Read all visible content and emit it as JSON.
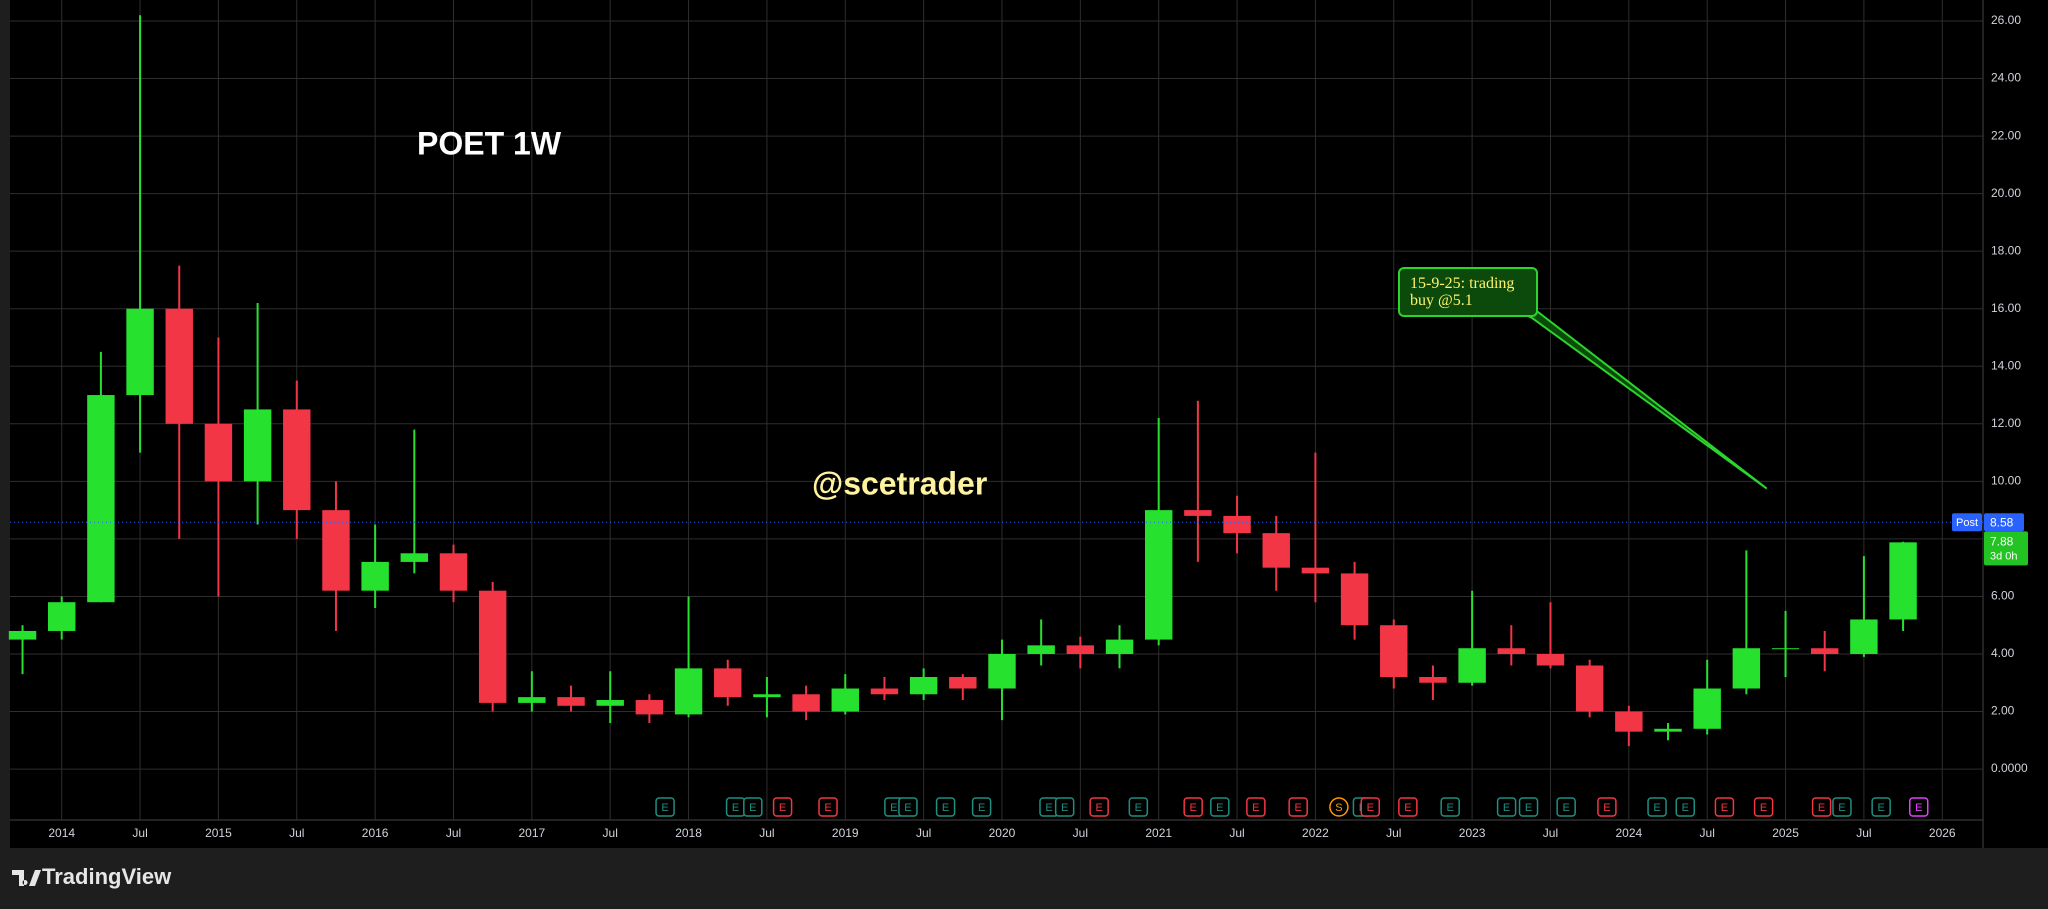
{
  "chart_data": {
    "type": "candlestick",
    "title": "POET 1W",
    "watermark": "@scetrader",
    "xlim": [
      2013.67,
      2026.26
    ],
    "ylim": [
      -1.77,
      26.73
    ],
    "grid": true,
    "up_color": "#27e12f",
    "down_color": "#f23645",
    "xticks": [
      2014,
      {
        "value": 2014.5,
        "label": "Jul"
      },
      2015,
      {
        "value": 2015.5,
        "label": "Jul"
      },
      2016,
      {
        "value": 2016.5,
        "label": "Jul"
      },
      2017,
      {
        "value": 2017.5,
        "label": "Jul"
      },
      2018,
      {
        "value": 2018.5,
        "label": "Jul"
      },
      2019,
      {
        "value": 2019.5,
        "label": "Jul"
      },
      2020,
      {
        "value": 2020.5,
        "label": "Jul"
      },
      2021,
      {
        "value": 2021.5,
        "label": "Jul"
      },
      2022,
      {
        "value": 2022.5,
        "label": "Jul"
      },
      2023,
      {
        "value": 2023.5,
        "label": "Jul"
      },
      2024,
      {
        "value": 2024.5,
        "label": "Jul"
      },
      2025,
      {
        "value": 2025.5,
        "label": "Jul"
      },
      2026
    ],
    "yticks": [
      {
        "value": 0,
        "label": "0.0000"
      },
      {
        "value": 2,
        "label": "2.00"
      },
      {
        "value": 4,
        "label": "4.00"
      },
      {
        "value": 6,
        "label": "6.00"
      },
      {
        "value": 8,
        "label": "8.00"
      },
      {
        "value": 10,
        "label": "10.00"
      },
      {
        "value": 12,
        "label": "12.00"
      },
      {
        "value": 14,
        "label": "14.00"
      },
      {
        "value": 16,
        "label": "16.00"
      },
      {
        "value": 18,
        "label": "18.00"
      },
      {
        "value": 20,
        "label": "20.00"
      },
      {
        "value": 22,
        "label": "22.00"
      },
      {
        "value": 24,
        "label": "24.00"
      },
      {
        "value": 26,
        "label": "26.00"
      }
    ],
    "x": [
      2013.75,
      2014.0,
      2014.25,
      2014.5,
      2014.75,
      2015.0,
      2015.25,
      2015.5,
      2015.75,
      2016.0,
      2016.25,
      2016.5,
      2016.75,
      2017.0,
      2017.25,
      2017.5,
      2017.75,
      2018.0,
      2018.25,
      2018.5,
      2018.75,
      2019.0,
      2019.25,
      2019.5,
      2019.75,
      2020.0,
      2020.25,
      2020.5,
      2020.75,
      2021.0,
      2021.25,
      2021.5,
      2021.75,
      2022.0,
      2022.25,
      2022.5,
      2022.75,
      2023.0,
      2023.25,
      2023.5,
      2023.75,
      2024.0,
      2024.25,
      2024.5,
      2024.75,
      2025.0,
      2025.25,
      2025.5,
      2025.75
    ],
    "open": [
      4.5,
      4.8,
      5.8,
      13,
      16,
      12,
      10,
      12.5,
      9,
      6.2,
      7.2,
      7.5,
      6.2,
      2.3,
      2.5,
      2.2,
      2.4,
      1.9,
      3.5,
      2.5,
      2.6,
      2.0,
      2.8,
      2.6,
      3.2,
      2.8,
      4.0,
      4.3,
      4.0,
      4.5,
      9.0,
      8.8,
      8.2,
      7.0,
      6.8,
      5.0,
      3.2,
      3.0,
      4.2,
      4.0,
      3.6,
      2.0,
      1.3,
      1.4,
      2.8,
      4.2,
      4.2,
      4.0,
      5.2
    ],
    "high": [
      5.0,
      6.0,
      14.5,
      26.2,
      17.5,
      15,
      16.2,
      13.5,
      10,
      8.5,
      11.8,
      7.8,
      6.5,
      3.4,
      2.9,
      3.4,
      2.6,
      6.0,
      3.8,
      3.2,
      2.9,
      3.3,
      3.2,
      3.5,
      3.3,
      4.5,
      5.2,
      4.6,
      5.0,
      12.2,
      12.8,
      9.5,
      8.8,
      11.0,
      7.2,
      5.2,
      3.6,
      6.2,
      5.0,
      5.8,
      3.8,
      2.2,
      1.6,
      3.8,
      7.6,
      5.5,
      4.8,
      7.4,
      7.9
    ],
    "low": [
      3.3,
      4.5,
      5.8,
      11,
      8.0,
      6.0,
      8.5,
      8.0,
      4.8,
      5.6,
      6.8,
      5.8,
      2.0,
      2.0,
      2.0,
      1.6,
      1.6,
      1.8,
      2.2,
      1.8,
      1.7,
      1.9,
      2.4,
      2.4,
      2.4,
      1.7,
      3.6,
      3.5,
      3.5,
      4.3,
      7.2,
      7.5,
      6.2,
      5.8,
      4.5,
      2.8,
      2.4,
      2.9,
      3.6,
      3.5,
      1.8,
      0.8,
      1.0,
      1.2,
      2.6,
      3.2,
      3.4,
      3.9,
      4.8
    ],
    "close": [
      4.8,
      5.8,
      13,
      16,
      12,
      10,
      12.5,
      9,
      6.2,
      7.2,
      7.5,
      6.2,
      2.3,
      2.5,
      2.2,
      2.4,
      1.9,
      3.5,
      2.5,
      2.6,
      2.0,
      2.8,
      2.6,
      3.2,
      2.8,
      4.0,
      4.3,
      4.0,
      4.5,
      9.0,
      8.8,
      8.2,
      7.0,
      6.8,
      5.0,
      3.2,
      3.0,
      4.2,
      4.0,
      3.6,
      2.0,
      1.3,
      1.4,
      2.8,
      4.2,
      4.2,
      4.0,
      5.2,
      7.88
    ],
    "post_price": {
      "label": "Post",
      "value": 8.58
    },
    "last_price": {
      "value": 7.88,
      "countdown": "3d 0h"
    },
    "annotation": {
      "text": "15-9-25: trading buy @5.1",
      "x": 2024.88,
      "y": 9.75
    },
    "events": [
      {
        "x": 2017.85,
        "label": "E",
        "color": "#1f8f80"
      },
      {
        "x": 2018.3,
        "label": "E",
        "color": "#1f8f80"
      },
      {
        "x": 2018.41,
        "label": "E",
        "color": "#1f8f80"
      },
      {
        "x": 2018.6,
        "label": "E",
        "color": "#f23645"
      },
      {
        "x": 2018.89,
        "label": "E",
        "color": "#f23645"
      },
      {
        "x": 2019.31,
        "label": "E",
        "color": "#1f8f80"
      },
      {
        "x": 2019.4,
        "label": "E",
        "color": "#1f8f80"
      },
      {
        "x": 2019.64,
        "label": "E",
        "color": "#1f8f80"
      },
      {
        "x": 2019.87,
        "label": "E",
        "color": "#1f8f80"
      },
      {
        "x": 2020.3,
        "label": "E",
        "color": "#1f8f80"
      },
      {
        "x": 2020.4,
        "label": "E",
        "color": "#1f8f80"
      },
      {
        "x": 2020.62,
        "label": "E",
        "color": "#f23645"
      },
      {
        "x": 2020.87,
        "label": "E",
        "color": "#1f8f80"
      },
      {
        "x": 2021.22,
        "label": "E",
        "color": "#f23645"
      },
      {
        "x": 2021.39,
        "label": "E",
        "color": "#1f8f80"
      },
      {
        "x": 2021.62,
        "label": "E",
        "color": "#f23645"
      },
      {
        "x": 2021.89,
        "label": "E",
        "color": "#f23645"
      },
      {
        "x": 2022.15,
        "label": "S",
        "color": "#ff9800"
      },
      {
        "x": 2022.3,
        "label": "E",
        "color": "#1f8f80"
      },
      {
        "x": 2022.35,
        "label": "E",
        "color": "#f23645"
      },
      {
        "x": 2022.59,
        "label": "E",
        "color": "#f23645"
      },
      {
        "x": 2022.86,
        "label": "E",
        "color": "#1f8f80"
      },
      {
        "x": 2023.22,
        "label": "E",
        "color": "#1f8f80"
      },
      {
        "x": 2023.36,
        "label": "E",
        "color": "#1f8f80"
      },
      {
        "x": 2023.6,
        "label": "E",
        "color": "#1f8f80"
      },
      {
        "x": 2023.86,
        "label": "E",
        "color": "#f23645"
      },
      {
        "x": 2024.18,
        "label": "E",
        "color": "#1f8f80"
      },
      {
        "x": 2024.36,
        "label": "E",
        "color": "#1f8f80"
      },
      {
        "x": 2024.61,
        "label": "E",
        "color": "#f23645"
      },
      {
        "x": 2024.86,
        "label": "E",
        "color": "#f23645"
      },
      {
        "x": 2025.23,
        "label": "E",
        "color": "#f23645"
      },
      {
        "x": 2025.36,
        "label": "E",
        "color": "#1f8f80"
      },
      {
        "x": 2025.61,
        "label": "E",
        "color": "#1f8f80"
      },
      {
        "x": 2025.85,
        "label": "E",
        "color": "#e040fb"
      }
    ]
  },
  "footer": {
    "brand": "TradingView"
  }
}
